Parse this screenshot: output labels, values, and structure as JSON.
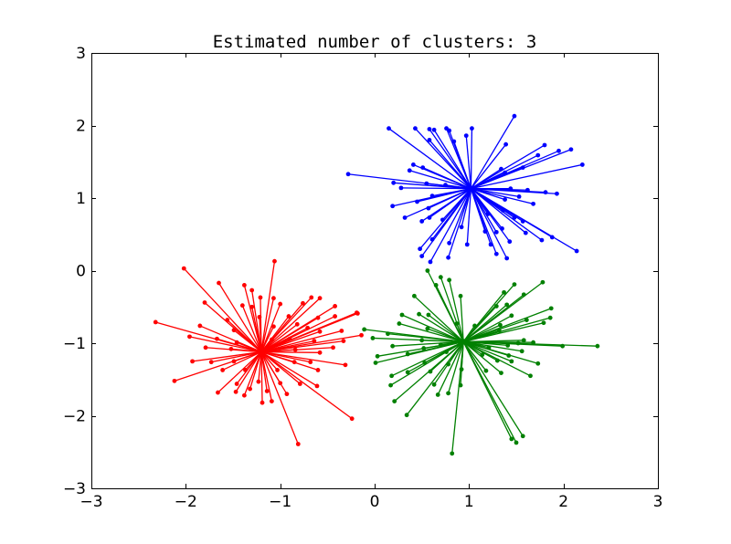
{
  "chart_data": {
    "type": "scatter",
    "title": "Estimated number of clusters: 3",
    "xlabel": "",
    "ylabel": "",
    "xlim": [
      -3,
      3
    ],
    "ylim": [
      -3,
      3
    ],
    "xticks": [
      -3,
      -2,
      -1,
      0,
      1,
      2,
      3
    ],
    "yticks": [
      -3,
      -2,
      -1,
      0,
      1,
      2,
      3
    ],
    "xtick_labels": [
      "−3",
      "−2",
      "−1",
      "0",
      "1",
      "2",
      "3"
    ],
    "ytick_labels": [
      "−3",
      "−2",
      "−1",
      "0",
      "1",
      "2",
      "3"
    ],
    "grid": false,
    "legend": "none",
    "series": [
      {
        "color": "#0000ff",
        "center": [
          1.02,
          1.13
        ],
        "points": [
          [
            1.48,
            2.13
          ],
          [
            0.15,
            1.96
          ],
          [
            0.43,
            1.96
          ],
          [
            0.58,
            1.95
          ],
          [
            0.63,
            1.94
          ],
          [
            0.76,
            1.96
          ],
          [
            0.79,
            1.93
          ],
          [
            0.97,
            1.86
          ],
          [
            1.03,
            1.96
          ],
          [
            0.58,
            1.8
          ],
          [
            0.84,
            1.78
          ],
          [
            1.39,
            1.74
          ],
          [
            1.8,
            1.73
          ],
          [
            1.95,
            1.65
          ],
          [
            2.08,
            1.67
          ],
          [
            1.73,
            1.59
          ],
          [
            2.2,
            1.46
          ],
          [
            0.41,
            1.46
          ],
          [
            0.51,
            1.42
          ],
          [
            0.37,
            1.38
          ],
          [
            1.34,
            1.4
          ],
          [
            1.57,
            1.42
          ],
          [
            1.38,
            1.35
          ],
          [
            -0.28,
            1.33
          ],
          [
            0.2,
            1.21
          ],
          [
            0.28,
            1.14
          ],
          [
            0.55,
            1.2
          ],
          [
            0.75,
            1.18
          ],
          [
            1.44,
            1.13
          ],
          [
            1.62,
            1.11
          ],
          [
            1.81,
            1.08
          ],
          [
            1.93,
            1.06
          ],
          [
            0.61,
            1.03
          ],
          [
            0.45,
            0.95
          ],
          [
            1.38,
            0.98
          ],
          [
            1.53,
            1.02
          ],
          [
            1.68,
            0.92
          ],
          [
            0.19,
            0.89
          ],
          [
            0.57,
            0.86
          ],
          [
            1.36,
            0.83
          ],
          [
            0.32,
            0.73
          ],
          [
            0.58,
            0.73
          ],
          [
            1.2,
            0.78
          ],
          [
            1.48,
            0.73
          ],
          [
            0.5,
            0.68
          ],
          [
            0.72,
            0.7
          ],
          [
            1.57,
            0.68
          ],
          [
            0.92,
            0.6
          ],
          [
            1.17,
            0.54
          ],
          [
            1.29,
            0.53
          ],
          [
            1.6,
            0.52
          ],
          [
            1.88,
            0.46
          ],
          [
            0.61,
            0.43
          ],
          [
            0.79,
            0.38
          ],
          [
            1.43,
            0.4
          ],
          [
            1.77,
            0.42
          ],
          [
            0.48,
            0.3
          ],
          [
            0.98,
            0.36
          ],
          [
            1.23,
            0.36
          ],
          [
            2.14,
            0.27
          ],
          [
            0.5,
            0.2
          ],
          [
            0.78,
            0.18
          ],
          [
            1.29,
            0.23
          ],
          [
            1.4,
            0.17
          ],
          [
            0.59,
            0.12
          ],
          [
            1.35,
            0.58
          ]
        ]
      },
      {
        "color": "#ff0000",
        "center": [
          -1.2,
          -1.12
        ],
        "points": [
          [
            -1.06,
            0.13
          ],
          [
            -2.02,
            0.03
          ],
          [
            -1.65,
            -0.17
          ],
          [
            -1.38,
            -0.2
          ],
          [
            -1.3,
            -0.27
          ],
          [
            -1.21,
            -0.37
          ],
          [
            -1.07,
            -0.38
          ],
          [
            -0.67,
            -0.37
          ],
          [
            -0.58,
            -0.38
          ],
          [
            -1.8,
            -0.44
          ],
          [
            -1.4,
            -0.48
          ],
          [
            -1.3,
            -0.5
          ],
          [
            -1.0,
            -0.46
          ],
          [
            -0.76,
            -0.45
          ],
          [
            -0.42,
            -0.49
          ],
          [
            -0.18,
            -0.59
          ],
          [
            -1.56,
            -0.68
          ],
          [
            -1.22,
            -0.64
          ],
          [
            -0.91,
            -0.63
          ],
          [
            -0.6,
            -0.65
          ],
          [
            -0.42,
            -0.63
          ],
          [
            -0.19,
            -0.58
          ],
          [
            -2.32,
            -0.71
          ],
          [
            -1.85,
            -0.76
          ],
          [
            -1.49,
            -0.82
          ],
          [
            -1.07,
            -0.77
          ],
          [
            -0.82,
            -0.74
          ],
          [
            -0.71,
            -0.79
          ],
          [
            -0.58,
            -0.84
          ],
          [
            -0.35,
            -0.83
          ],
          [
            -1.96,
            -0.91
          ],
          [
            -1.67,
            -0.94
          ],
          [
            -1.46,
            -0.99
          ],
          [
            -1.09,
            -0.95
          ],
          [
            -0.9,
            -0.94
          ],
          [
            -0.64,
            -0.97
          ],
          [
            -0.33,
            -0.97
          ],
          [
            -0.14,
            -0.89
          ],
          [
            -1.79,
            -1.06
          ],
          [
            -1.52,
            -1.08
          ],
          [
            -0.84,
            -1.09
          ],
          [
            -0.58,
            -1.13
          ],
          [
            -0.44,
            -1.06
          ],
          [
            -1.93,
            -1.25
          ],
          [
            -1.73,
            -1.26
          ],
          [
            -1.49,
            -1.25
          ],
          [
            -0.85,
            -1.26
          ],
          [
            -0.68,
            -1.26
          ],
          [
            -0.31,
            -1.3
          ],
          [
            -1.61,
            -1.37
          ],
          [
            -1.37,
            -1.37
          ],
          [
            -1.03,
            -1.37
          ],
          [
            -0.6,
            -1.37
          ],
          [
            -2.12,
            -1.52
          ],
          [
            -1.46,
            -1.56
          ],
          [
            -1.23,
            -1.53
          ],
          [
            -1.0,
            -1.55
          ],
          [
            -0.79,
            -1.56
          ],
          [
            -0.61,
            -1.59
          ],
          [
            -1.66,
            -1.68
          ],
          [
            -1.47,
            -1.67
          ],
          [
            -1.38,
            -1.72
          ],
          [
            -1.32,
            -1.63
          ],
          [
            -1.14,
            -1.66
          ],
          [
            -0.93,
            -1.7
          ],
          [
            -1.19,
            -1.82
          ],
          [
            -1.09,
            -1.8
          ],
          [
            -0.24,
            -2.04
          ],
          [
            -0.81,
            -2.39
          ]
        ]
      },
      {
        "color": "#008000",
        "center": [
          0.94,
          -0.98
        ],
        "points": [
          [
            0.56,
            0.0
          ],
          [
            0.7,
            -0.09
          ],
          [
            0.79,
            -0.13
          ],
          [
            0.65,
            -0.2
          ],
          [
            1.48,
            -0.19
          ],
          [
            1.78,
            -0.16
          ],
          [
            0.42,
            -0.35
          ],
          [
            0.91,
            -0.35
          ],
          [
            1.37,
            -0.3
          ],
          [
            1.58,
            -0.33
          ],
          [
            1.87,
            -0.52
          ],
          [
            0.29,
            -0.61
          ],
          [
            0.47,
            -0.6
          ],
          [
            0.57,
            -0.61
          ],
          [
            1.29,
            -0.49
          ],
          [
            1.4,
            -0.47
          ],
          [
            0.26,
            -0.73
          ],
          [
            1.45,
            -0.62
          ],
          [
            1.61,
            -0.68
          ],
          [
            1.86,
            -0.65
          ],
          [
            -0.11,
            -0.81
          ],
          [
            0.56,
            -0.8
          ],
          [
            0.87,
            -0.73
          ],
          [
            1.06,
            -0.76
          ],
          [
            1.33,
            -0.75
          ],
          [
            1.79,
            -0.72
          ],
          [
            -0.02,
            -0.93
          ],
          [
            0.14,
            -0.87
          ],
          [
            0.5,
            -0.96
          ],
          [
            1.32,
            -0.83
          ],
          [
            1.58,
            -0.96
          ],
          [
            0.19,
            -1.04
          ],
          [
            0.52,
            -1.07
          ],
          [
            0.7,
            -1.02
          ],
          [
            1.21,
            -1.06
          ],
          [
            1.41,
            -1.03
          ],
          [
            1.52,
            -1.0
          ],
          [
            1.68,
            -0.99
          ],
          [
            1.99,
            -1.04
          ],
          [
            2.36,
            -1.04
          ],
          [
            0.03,
            -1.18
          ],
          [
            0.35,
            -1.15
          ],
          [
            0.76,
            -1.12
          ],
          [
            1.14,
            -1.16
          ],
          [
            1.42,
            -1.17
          ],
          [
            1.56,
            -1.11
          ],
          [
            0.01,
            -1.27
          ],
          [
            0.53,
            -1.27
          ],
          [
            0.78,
            -1.29
          ],
          [
            1.3,
            -1.24
          ],
          [
            1.45,
            -1.25
          ],
          [
            1.73,
            -1.28
          ],
          [
            0.18,
            -1.45
          ],
          [
            0.35,
            -1.4
          ],
          [
            0.59,
            -1.39
          ],
          [
            0.92,
            -1.36
          ],
          [
            1.18,
            -1.38
          ],
          [
            1.34,
            -1.41
          ],
          [
            1.65,
            -1.45
          ],
          [
            0.17,
            -1.58
          ],
          [
            0.63,
            -1.57
          ],
          [
            0.91,
            -1.58
          ],
          [
            0.21,
            -1.8
          ],
          [
            0.67,
            -1.71
          ],
          [
            0.78,
            -1.69
          ],
          [
            0.34,
            -1.99
          ],
          [
            1.45,
            -2.32
          ],
          [
            1.5,
            -2.37
          ],
          [
            1.57,
            -2.28
          ],
          [
            0.82,
            -2.52
          ]
        ]
      }
    ]
  }
}
